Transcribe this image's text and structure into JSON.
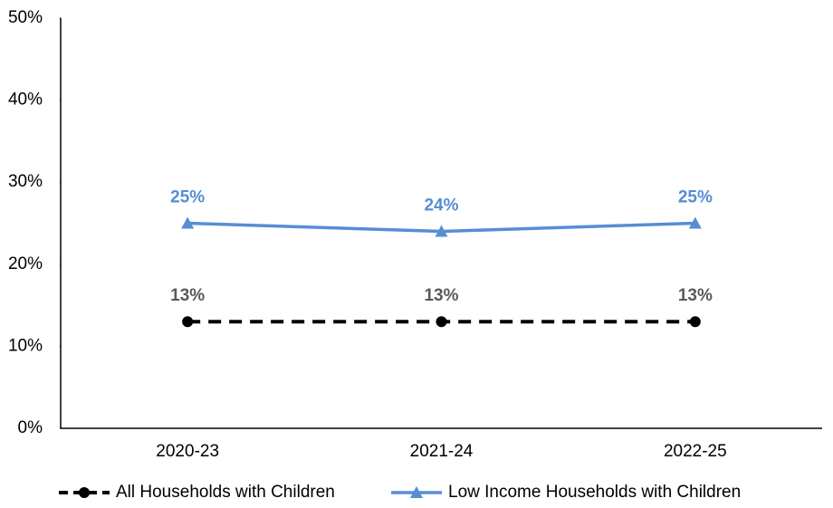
{
  "chart_data": {
    "type": "line",
    "categories": [
      "2020-23",
      "2021-24",
      "2022-25"
    ],
    "series": [
      {
        "name": "All Households with Children",
        "color": "#000000",
        "label_color": "#595959",
        "dash": true,
        "marker": "circle",
        "values": [
          13,
          13,
          13
        ],
        "value_labels": [
          "13%",
          "13%",
          "13%"
        ]
      },
      {
        "name": "Low Income Households with Children",
        "color": "#558ed5",
        "label_color": "#558ed5",
        "dash": false,
        "marker": "triangle",
        "values": [
          25,
          24,
          25
        ],
        "value_labels": [
          "25%",
          "24%",
          "25%"
        ]
      }
    ],
    "ylim": [
      0,
      50
    ],
    "yticks": [
      {
        "value": 0,
        "label": "0%"
      },
      {
        "value": 10,
        "label": "10%"
      },
      {
        "value": 20,
        "label": "20%"
      },
      {
        "value": 30,
        "label": "30%"
      },
      {
        "value": 40,
        "label": "40%"
      },
      {
        "value": 50,
        "label": "50%"
      }
    ],
    "grid": false,
    "legend": "bottom"
  }
}
